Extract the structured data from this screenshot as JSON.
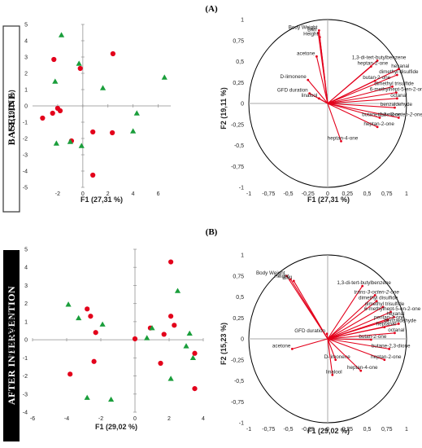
{
  "panels": [
    {
      "id": "A",
      "label": "(A)",
      "side_label": "BASELINE"
    },
    {
      "id": "B",
      "label": "(B)",
      "side_label": "AFTER INTERVENTION"
    }
  ],
  "chart_data": [
    {
      "type": "scatter",
      "panel": "A",
      "xlabel": "F1 (27,31 %)",
      "ylabel": "F2 (19,11 %)",
      "xlim": [
        -4,
        7
      ],
      "ylim": [
        -5,
        5
      ],
      "xticks": [
        "-2",
        "0",
        "2",
        "4",
        "6"
      ],
      "yticks": [
        "5",
        "4",
        "3",
        "2",
        "1",
        "0",
        "-1",
        "-2",
        "-3",
        "-4",
        "-5"
      ],
      "series": [
        {
          "marker": "circle",
          "color": "#e3001b",
          "points": [
            [
              -2.3,
              2.85
            ],
            [
              2.4,
              3.2
            ],
            [
              -0.2,
              2.3
            ],
            [
              -2.0,
              -0.15
            ],
            [
              -1.8,
              -0.3
            ],
            [
              -2.4,
              -0.45
            ],
            [
              -3.2,
              -0.75
            ],
            [
              -0.9,
              -2.15
            ],
            [
              2.35,
              -1.65
            ],
            [
              0.8,
              -1.6
            ],
            [
              0.8,
              -4.25
            ]
          ]
        },
        {
          "marker": "triangle",
          "color": "#1a9e3b",
          "points": [
            [
              -1.7,
              4.35
            ],
            [
              -0.3,
              2.6
            ],
            [
              -2.2,
              1.5
            ],
            [
              1.6,
              1.1
            ],
            [
              6.5,
              1.75
            ],
            [
              4.3,
              -0.45
            ],
            [
              -2.1,
              -2.3
            ],
            [
              -1.0,
              -2.2
            ],
            [
              -0.1,
              -2.45
            ],
            [
              4.0,
              -1.55
            ]
          ]
        }
      ]
    },
    {
      "type": "biplot",
      "panel": "A",
      "xlabel": "F1 (27,31 %)",
      "ylabel": "F2 (19,11 %)",
      "xlim": [
        -1,
        1
      ],
      "ylim": [
        -1,
        1
      ],
      "xticks": [
        "-1",
        "-0,75",
        "-0,5",
        "-0,25",
        "0",
        "0,25",
        "0,5",
        "0,75",
        "1"
      ],
      "yticks": [
        "1",
        "0,75",
        "0,5",
        "0,25",
        "0",
        "-0,25",
        "-0,5",
        "-0,75",
        "-1"
      ],
      "variables": [
        {
          "name": "Body Weight",
          "x": -0.11,
          "y": 0.87
        },
        {
          "name": "BMI",
          "x": -0.12,
          "y": 0.84
        },
        {
          "name": "Height",
          "x": -0.1,
          "y": 0.79
        },
        {
          "name": "acetone",
          "x": -0.14,
          "y": 0.56
        },
        {
          "name": "D-limonene",
          "x": -0.25,
          "y": 0.28
        },
        {
          "name": "GFD duration",
          "x": -0.23,
          "y": 0.12
        },
        {
          "name": "linalool",
          "x": -0.11,
          "y": 0.06
        },
        {
          "name": "1,3-di-tert-butylbenzene",
          "x": 0.63,
          "y": 0.51
        },
        {
          "name": "hexanal",
          "x": 0.9,
          "y": 0.41
        },
        {
          "name": "heptan-2-one",
          "x": 0.55,
          "y": 0.44
        },
        {
          "name": "dimethyl disulfide",
          "x": 0.88,
          "y": 0.34
        },
        {
          "name": "butan-2-one",
          "x": 0.6,
          "y": 0.27
        },
        {
          "name": "dimethyl trisulfide",
          "x": 0.82,
          "y": 0.2
        },
        {
          "name": "6-methylhept-5-en-2-one",
          "x": 0.87,
          "y": 0.13
        },
        {
          "name": "octanal",
          "x": 0.88,
          "y": 0.06
        },
        {
          "name": "benzaldehyde",
          "x": 0.85,
          "y": -0.05
        },
        {
          "name": "butane-2,3-dione",
          "x": 0.66,
          "y": -0.17
        },
        {
          "name": "trans-3-octen-2-one",
          "x": 0.9,
          "y": -0.17
        },
        {
          "name": "heptan-2-one",
          "x": 0.63,
          "y": -0.28
        },
        {
          "name": "heptan-4-one",
          "x": 0.17,
          "y": -0.45
        }
      ]
    },
    {
      "type": "scatter",
      "panel": "B",
      "xlabel": "F1 (29,02 %)",
      "ylabel": "F2 (15,23 %)",
      "xlim": [
        -6,
        4
      ],
      "ylim": [
        -4,
        5
      ],
      "xticks": [
        "-6",
        "-4",
        "-2",
        "0",
        "2",
        "4"
      ],
      "yticks": [
        "5",
        "4",
        "3",
        "2",
        "1",
        "0",
        "-1",
        "-2",
        "-3",
        "-4"
      ],
      "series": [
        {
          "marker": "circle",
          "color": "#e3001b",
          "points": [
            [
              2.1,
              4.3
            ],
            [
              -2.8,
              1.7
            ],
            [
              -2.6,
              1.3
            ],
            [
              -2.3,
              0.4
            ],
            [
              2.1,
              1.3
            ],
            [
              2.3,
              0.8
            ],
            [
              1.7,
              0.3
            ],
            [
              0.9,
              0.65
            ],
            [
              0,
              0.05
            ],
            [
              -2.4,
              -1.2
            ],
            [
              3.5,
              -0.75
            ],
            [
              1.5,
              -1.3
            ],
            [
              3.5,
              -2.7
            ],
            [
              -3.8,
              -1.9
            ]
          ]
        },
        {
          "marker": "triangle",
          "color": "#1a9e3b",
          "points": [
            [
              2.5,
              2.7
            ],
            [
              -3.9,
              1.95
            ],
            [
              -3.3,
              1.2
            ],
            [
              -1.9,
              0.85
            ],
            [
              1.0,
              0.65
            ],
            [
              3.2,
              0.35
            ],
            [
              0.7,
              0.1
            ],
            [
              3.0,
              -0.35
            ],
            [
              3.4,
              -1.0
            ],
            [
              2.1,
              -2.15
            ],
            [
              -2.8,
              -3.2
            ],
            [
              -1.4,
              -3.3
            ]
          ]
        }
      ]
    },
    {
      "type": "biplot",
      "panel": "B",
      "xlabel": "F1 (29,02 %)",
      "ylabel": "F2 (15,23 %)",
      "xlim": [
        -1,
        1
      ],
      "ylim": [
        -1,
        1
      ],
      "xticks": [
        "-1",
        "-0,75",
        "-0,5",
        "-0,25",
        "0",
        "0,25",
        "0,5",
        "0,75",
        "1"
      ],
      "yticks": [
        "1",
        "0,75",
        "0,5",
        "0,25",
        "0",
        "-0,25",
        "-0,5",
        "-0,75",
        "-1"
      ],
      "variables": [
        {
          "name": "Body Weight",
          "x": -0.52,
          "y": 0.75
        },
        {
          "name": "Height",
          "x": -0.47,
          "y": 0.71
        },
        {
          "name": "BMI",
          "x": -0.43,
          "y": 0.69
        },
        {
          "name": "1,3-di-tert-butylbenzene",
          "x": 0.44,
          "y": 0.63
        },
        {
          "name": "trans-3-octen-2-one",
          "x": 0.6,
          "y": 0.52
        },
        {
          "name": "dimethyl disulfide",
          "x": 0.62,
          "y": 0.45
        },
        {
          "name": "dimethyl trisulfide",
          "x": 0.7,
          "y": 0.38
        },
        {
          "name": "6-methylhept-5-en-2-one",
          "x": 0.8,
          "y": 0.32
        },
        {
          "name": "hexanal",
          "x": 0.84,
          "y": 0.26
        },
        {
          "name": "pentan-2-one",
          "x": 0.76,
          "y": 0.22
        },
        {
          "name": "benzaldehyde",
          "x": 0.9,
          "y": 0.18
        },
        {
          "name": "heptanal",
          "x": 0.72,
          "y": 0.14
        },
        {
          "name": "octanal",
          "x": 0.85,
          "y": 0.07
        },
        {
          "name": "butan-2-one",
          "x": 0.55,
          "y": -0.01
        },
        {
          "name": "butane-2,3-dione",
          "x": 0.78,
          "y": -0.12
        },
        {
          "name": "heptan-2-one",
          "x": 0.72,
          "y": -0.25
        },
        {
          "name": "D-limonene",
          "x": 0.1,
          "y": -0.25
        },
        {
          "name": "heptan-4-one",
          "x": 0.42,
          "y": -0.38
        },
        {
          "name": "linalool",
          "x": 0.06,
          "y": -0.43
        },
        {
          "name": "GFD duration",
          "x": -0.01,
          "y": 0.06
        },
        {
          "name": "acetone",
          "x": -0.45,
          "y": -0.12
        }
      ]
    }
  ]
}
